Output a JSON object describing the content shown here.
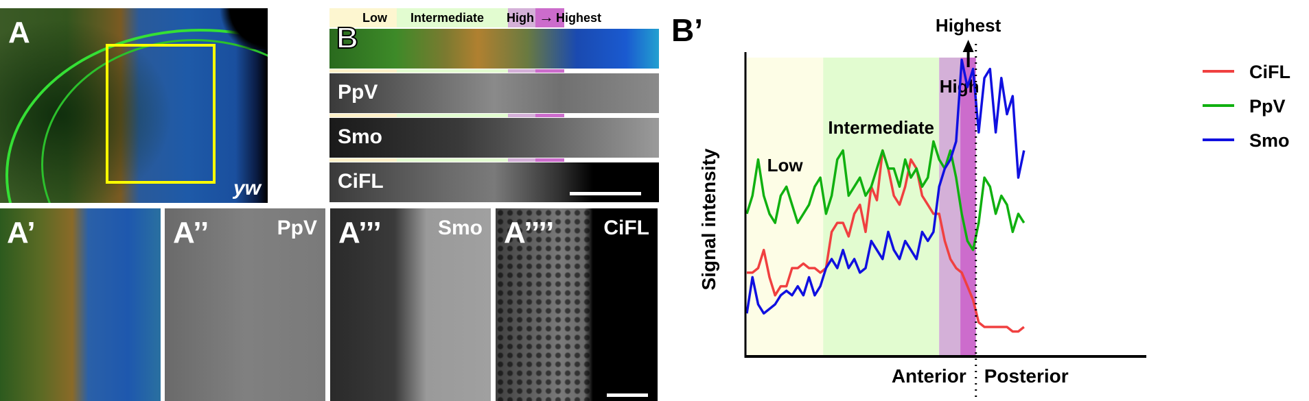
{
  "panels": {
    "A": {
      "label": "A",
      "genotype": "yw"
    },
    "B": {
      "label": "B",
      "zone_header": {
        "low": "Low",
        "intermediate": "Intermediate",
        "high": "High",
        "highest": "Highest",
        "arrow": "→"
      },
      "strips": [
        {
          "name": "merge",
          "label": ""
        },
        {
          "name": "ppv",
          "label": "PpV"
        },
        {
          "name": "smo",
          "label": "Smo"
        },
        {
          "name": "cifl",
          "label": "CiFL"
        }
      ]
    },
    "A1": {
      "label": "A’"
    },
    "A2": {
      "label": "A’’",
      "channel": "PpV"
    },
    "A3": {
      "label": "A’’’",
      "channel": "Smo"
    },
    "A4": {
      "label": "A’’’’",
      "channel": "CiFL"
    }
  },
  "colors": {
    "low_zone": "#fdfde6",
    "intermediate_zone": "#e2fcd0",
    "high_zone": "#d4b0d8",
    "highest_zone": "#cc6ccc",
    "cifl": "#f04040",
    "ppv": "#10b010",
    "smo": "#1010e0",
    "roi": "#ffff00"
  },
  "chart_data": {
    "type": "line",
    "panel_label": "B’",
    "title": "",
    "xlabel_left": "Anterior",
    "xlabel_right": "Posterior",
    "ylabel": "Signal intensity",
    "x_range": [
      0,
      100
    ],
    "y_range": [
      0,
      100
    ],
    "grid": false,
    "legend_position": "top-right",
    "zones": [
      {
        "name": "Low",
        "x0": 0,
        "x1": 27
      },
      {
        "name": "Intermediate",
        "x0": 27,
        "x1": 68
      },
      {
        "name": "High",
        "x0": 68,
        "x1": 75.5
      },
      {
        "name": "Highest",
        "x0": 75.5,
        "x1": 81
      }
    ],
    "highest_annotation": "Highest",
    "boundary_x": 81,
    "series": [
      {
        "name": "CiFL",
        "x": [
          0,
          2,
          4,
          6,
          8,
          10,
          12,
          14,
          16,
          18,
          20,
          22,
          24,
          26,
          28,
          30,
          32,
          34,
          36,
          38,
          40,
          42,
          44,
          46,
          48,
          50,
          52,
          54,
          56,
          58,
          60,
          62,
          64,
          66,
          68,
          70,
          72,
          74,
          76,
          78,
          80,
          82,
          84,
          86,
          88,
          90,
          92,
          94,
          96,
          98
        ],
        "values": [
          17,
          17,
          18,
          22,
          16,
          12,
          14,
          14,
          18,
          18,
          19,
          18,
          18,
          17,
          18,
          26,
          28,
          28,
          25,
          30,
          32,
          26,
          36,
          33,
          44,
          40,
          34,
          32,
          36,
          42,
          40,
          34,
          32,
          30,
          30,
          24,
          20,
          18,
          17,
          14,
          11,
          6,
          5,
          5,
          5,
          5,
          5,
          4,
          4,
          5
        ]
      },
      {
        "name": "PpV",
        "x": [
          0,
          2,
          4,
          6,
          8,
          10,
          12,
          14,
          16,
          18,
          20,
          22,
          24,
          26,
          28,
          30,
          32,
          34,
          36,
          38,
          40,
          42,
          44,
          46,
          48,
          50,
          52,
          54,
          56,
          58,
          60,
          62,
          64,
          66,
          68,
          70,
          72,
          74,
          76,
          78,
          80,
          82,
          84,
          86,
          88,
          90,
          92,
          94,
          96,
          98
        ],
        "values": [
          30,
          34,
          42,
          34,
          30,
          28,
          34,
          36,
          32,
          28,
          30,
          32,
          36,
          38,
          30,
          34,
          42,
          44,
          34,
          36,
          38,
          34,
          36,
          40,
          44,
          40,
          40,
          36,
          42,
          38,
          40,
          36,
          38,
          46,
          42,
          40,
          44,
          38,
          30,
          24,
          22,
          28,
          38,
          36,
          30,
          34,
          32,
          26,
          30,
          28
        ]
      },
      {
        "name": "Smo",
        "x": [
          0,
          2,
          4,
          6,
          8,
          10,
          12,
          14,
          16,
          18,
          20,
          22,
          24,
          26,
          28,
          30,
          32,
          34,
          36,
          38,
          40,
          42,
          44,
          46,
          48,
          50,
          52,
          54,
          56,
          58,
          60,
          62,
          64,
          66,
          68,
          70,
          72,
          74,
          76,
          78,
          80,
          82,
          84,
          86,
          88,
          90,
          92,
          94,
          96,
          98
        ],
        "values": [
          8,
          16,
          10,
          8,
          9,
          10,
          12,
          13,
          12,
          14,
          12,
          16,
          12,
          14,
          18,
          20,
          18,
          22,
          18,
          20,
          17,
          18,
          24,
          22,
          20,
          26,
          22,
          20,
          24,
          22,
          20,
          26,
          24,
          26,
          36,
          40,
          42,
          46,
          64,
          58,
          62,
          48,
          60,
          62,
          48,
          60,
          52,
          56,
          38,
          44
        ]
      }
    ]
  }
}
